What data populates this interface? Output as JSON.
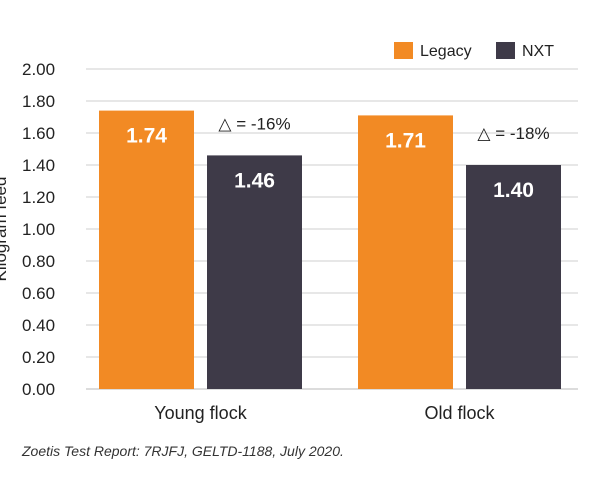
{
  "chart_data": {
    "type": "bar",
    "categories": [
      "Young flock",
      "Old flock"
    ],
    "series": [
      {
        "name": "Legacy",
        "values": [
          1.74,
          1.71
        ],
        "color": "#F28A24"
      },
      {
        "name": "NXT",
        "values": [
          1.46,
          1.4
        ],
        "color": "#3E3A48"
      }
    ],
    "ylabel": "Kilogram feed",
    "ylim": [
      0,
      2.0
    ],
    "yticks": [
      "0.00",
      "0.20",
      "0.40",
      "0.60",
      "0.80",
      "1.00",
      "1.20",
      "1.40",
      "1.60",
      "1.80",
      "2.00"
    ],
    "data_labels": [
      [
        "1.74",
        "1.71"
      ],
      [
        "1.46",
        "1.40"
      ]
    ],
    "annotations": [
      "△ = -16%",
      "△ = -18%"
    ],
    "grid": true,
    "legend_position": "top-right"
  },
  "footnote": "Zoetis Test Report: 7RJFJ, GELTD-1188, July 2020."
}
